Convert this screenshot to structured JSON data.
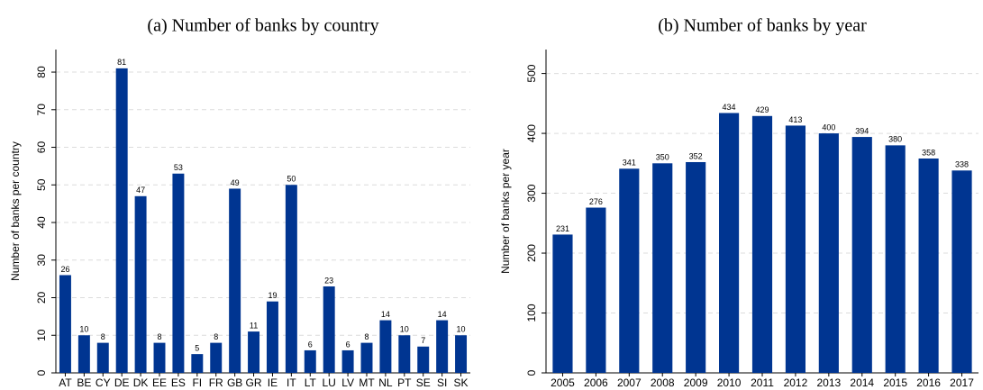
{
  "chart_data": [
    {
      "type": "bar",
      "title": "(a) Number of banks by country",
      "ylabel": "Number of banks per country",
      "categories": [
        "AT",
        "BE",
        "CY",
        "DE",
        "DK",
        "EE",
        "ES",
        "FI",
        "FR",
        "GB",
        "GR",
        "IE",
        "IT",
        "LT",
        "LU",
        "LV",
        "MT",
        "NL",
        "PT",
        "SE",
        "SI",
        "SK"
      ],
      "values": [
        26,
        10,
        8,
        81,
        47,
        8,
        53,
        5,
        8,
        49,
        11,
        19,
        50,
        6,
        23,
        6,
        8,
        14,
        10,
        7,
        14,
        10
      ],
      "color": "#003591",
      "ylim": [
        0,
        86
      ],
      "yticks": [
        0,
        10,
        20,
        30,
        40,
        50,
        60,
        70,
        80
      ],
      "grid": true
    },
    {
      "type": "bar",
      "title": "(b) Number of banks by year",
      "ylabel": "Number of banks per year",
      "categories": [
        "2005",
        "2006",
        "2007",
        "2008",
        "2009",
        "2010",
        "2011",
        "2012",
        "2013",
        "2014",
        "2015",
        "2016",
        "2017"
      ],
      "values": [
        231,
        276,
        341,
        350,
        352,
        434,
        429,
        413,
        400,
        394,
        380,
        358,
        338
      ],
      "color": "#003591",
      "ylim": [
        0,
        540
      ],
      "yticks": [
        0,
        100,
        200,
        300,
        400,
        500
      ],
      "grid": true
    }
  ]
}
